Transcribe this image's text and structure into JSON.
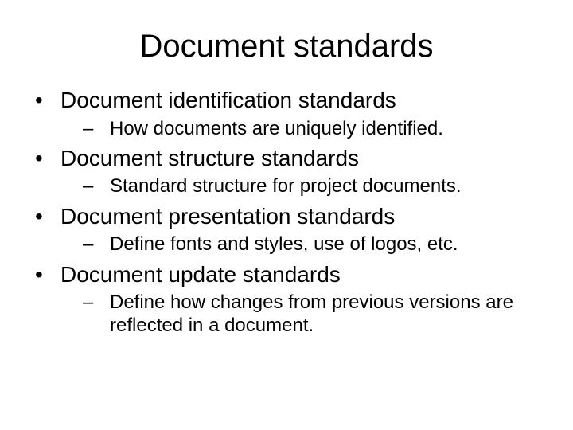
{
  "title": "Document standards",
  "items": [
    {
      "label": "Document identification standards",
      "sub": [
        {
          "label": "How documents are uniquely identified."
        }
      ]
    },
    {
      "label": "Document structure standards",
      "sub": [
        {
          "label": "Standard structure for project documents."
        }
      ]
    },
    {
      "label": "Document presentation standards",
      "sub": [
        {
          "label": "Define fonts and styles, use of logos, etc."
        }
      ]
    },
    {
      "label": "Document update standards",
      "sub": [
        {
          "label": "Define how changes from previous versions are reflected in a document."
        }
      ]
    }
  ],
  "markers": {
    "level1": "•",
    "level2": "–"
  },
  "style": {
    "background_color": "#ffffff",
    "text_color": "#000000",
    "title_fontsize": 40,
    "level1_fontsize": 28,
    "level2_fontsize": 24,
    "font_family": "Arial"
  }
}
